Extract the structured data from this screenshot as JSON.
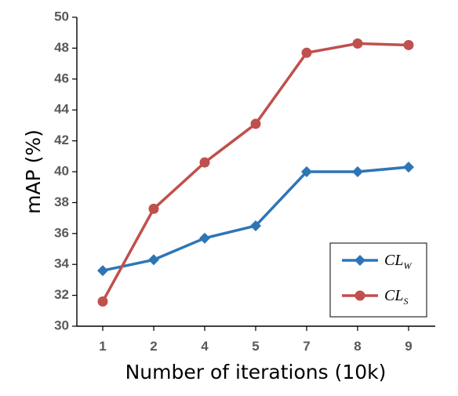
{
  "chart_data": {
    "type": "line",
    "categories": [
      "1",
      "2",
      "4",
      "5",
      "7",
      "8",
      "9"
    ],
    "ylabel": "mAP (%)",
    "xlabel": "Number of iterations (10k)",
    "ylim": [
      30,
      50
    ],
    "yticks": [
      30,
      32,
      34,
      36,
      38,
      40,
      42,
      44,
      46,
      48,
      50
    ],
    "grid": false,
    "legend_position": "bottom-right",
    "series": [
      {
        "name": "CL_W",
        "name_base": "CL",
        "name_sub": "W",
        "color": "#2E75B6",
        "marker": "diamond",
        "values": [
          33.6,
          34.3,
          35.7,
          36.5,
          40.0,
          40.0,
          40.3
        ]
      },
      {
        "name": "CL_S",
        "name_base": "CL",
        "name_sub": "S",
        "color": "#C0504D",
        "marker": "circle",
        "values": [
          31.6,
          37.6,
          40.6,
          43.1,
          47.7,
          48.3,
          48.2
        ]
      }
    ]
  }
}
